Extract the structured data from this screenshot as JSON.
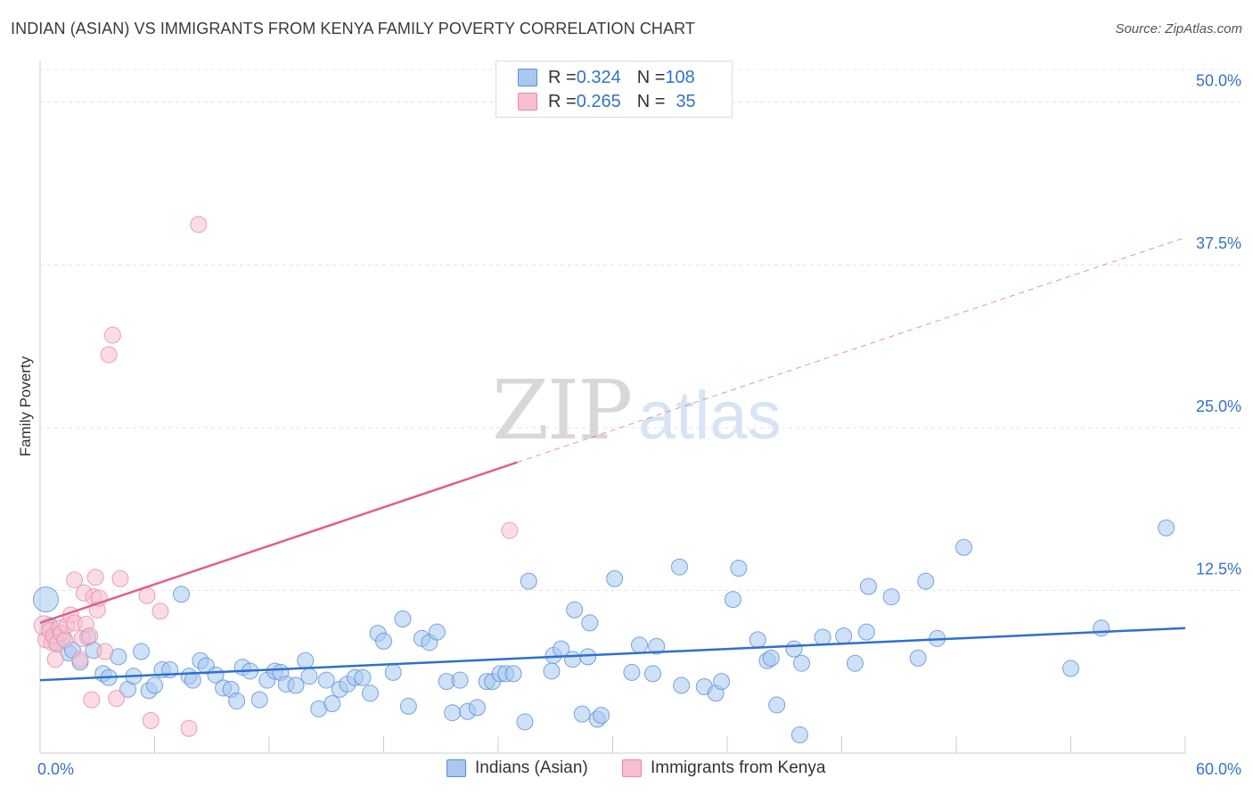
{
  "title": "INDIAN (ASIAN) VS IMMIGRANTS FROM KENYA FAMILY POVERTY CORRELATION CHART",
  "source": "Source: ZipAtlas.com",
  "watermark": {
    "zip": "ZIP",
    "atlas": "atlas"
  },
  "colors": {
    "blue_fill": "#a8c8f0",
    "blue_stroke": "#5b8fd6",
    "blue_line": "#2f6fd0",
    "pink_fill": "#f7bfd0",
    "pink_stroke": "#e68aa8",
    "pink_line": "#e0608a",
    "axis_text": "#3572c6"
  },
  "legend": {
    "rows": [
      {
        "r_label": "R = ",
        "r_value": "0.324",
        "n_label": "N = ",
        "n_value": "108",
        "color": "#a8c8f0"
      },
      {
        "r_label": "R = ",
        "r_value": "0.265",
        "n_label": "N = ",
        "n_value": "35",
        "color": "#f7bfd0"
      }
    ]
  },
  "chart_data": {
    "type": "scatter",
    "title": "INDIAN (ASIAN) VS IMMIGRANTS FROM KENYA FAMILY POVERTY CORRELATION CHART",
    "xlabel": "",
    "ylabel": "Family Poverty",
    "xlim": [
      0,
      60
    ],
    "ylim": [
      0,
      52.5
    ],
    "x_tick_labels": [
      "0.0%",
      "60.0%"
    ],
    "y_ticks": [
      12.5,
      25.0,
      37.5,
      50.0
    ],
    "y_tick_labels": [
      "12.5%",
      "25.0%",
      "37.5%",
      "50.0%"
    ],
    "grid": true,
    "series": [
      {
        "name": "Indians (Asian)",
        "color": "#a8c8f0",
        "trend": {
          "x0": 0,
          "y0": 5.6,
          "x1": 60,
          "y1": 9.6,
          "solid_to": 60
        },
        "points": [
          [
            0.3,
            11.8,
            14
          ],
          [
            0.5,
            9.8,
            9
          ],
          [
            0.8,
            8.5,
            9
          ],
          [
            1.2,
            8.9,
            9
          ],
          [
            1.5,
            7.7,
            9
          ],
          [
            1.7,
            7.9,
            9
          ],
          [
            2.1,
            7.0,
            9
          ],
          [
            2.5,
            8.9,
            9
          ],
          [
            2.8,
            7.9,
            9
          ],
          [
            3.3,
            6.1,
            9
          ],
          [
            3.6,
            5.8,
            9
          ],
          [
            4.1,
            7.4,
            9
          ],
          [
            4.6,
            4.9,
            9
          ],
          [
            4.9,
            5.9,
            9
          ],
          [
            5.3,
            7.8,
            9
          ],
          [
            5.7,
            4.8,
            9
          ],
          [
            6.0,
            5.2,
            9
          ],
          [
            6.4,
            6.4,
            9
          ],
          [
            6.8,
            6.4,
            9
          ],
          [
            7.4,
            12.2,
            9
          ],
          [
            7.8,
            5.9,
            9
          ],
          [
            8.0,
            5.6,
            9
          ],
          [
            8.4,
            7.1,
            9
          ],
          [
            8.7,
            6.7,
            9
          ],
          [
            9.2,
            6.0,
            9
          ],
          [
            9.6,
            5.0,
            9
          ],
          [
            10.0,
            4.9,
            9
          ],
          [
            10.3,
            4.0,
            9
          ],
          [
            10.6,
            6.6,
            9
          ],
          [
            11.0,
            6.3,
            9
          ],
          [
            11.5,
            4.1,
            9
          ],
          [
            11.9,
            5.6,
            9
          ],
          [
            12.3,
            6.3,
            9
          ],
          [
            12.6,
            6.2,
            9
          ],
          [
            12.9,
            5.3,
            9
          ],
          [
            13.4,
            5.2,
            9
          ],
          [
            13.9,
            7.1,
            9
          ],
          [
            14.1,
            5.9,
            9
          ],
          [
            14.6,
            3.4,
            9
          ],
          [
            15.0,
            5.6,
            9
          ],
          [
            15.3,
            3.8,
            9
          ],
          [
            15.7,
            4.9,
            9
          ],
          [
            16.1,
            5.3,
            9
          ],
          [
            16.5,
            5.8,
            9
          ],
          [
            16.9,
            5.8,
            9
          ],
          [
            17.3,
            4.6,
            9
          ],
          [
            17.7,
            9.2,
            9
          ],
          [
            18.0,
            8.6,
            9
          ],
          [
            18.5,
            6.2,
            9
          ],
          [
            19.0,
            10.3,
            9
          ],
          [
            19.3,
            3.6,
            9
          ],
          [
            20.0,
            8.8,
            9
          ],
          [
            20.4,
            8.5,
            9
          ],
          [
            20.8,
            9.3,
            9
          ],
          [
            21.3,
            5.5,
            9
          ],
          [
            21.6,
            3.1,
            9
          ],
          [
            22.0,
            5.6,
            9
          ],
          [
            22.4,
            3.2,
            9
          ],
          [
            22.9,
            3.5,
            9
          ],
          [
            23.4,
            5.5,
            9
          ],
          [
            23.7,
            5.5,
            9
          ],
          [
            24.1,
            6.1,
            9
          ],
          [
            24.4,
            6.1,
            9
          ],
          [
            24.8,
            6.1,
            9
          ],
          [
            25.4,
            2.4,
            9
          ],
          [
            25.6,
            13.2,
            9
          ],
          [
            26.8,
            6.3,
            9
          ],
          [
            26.9,
            7.5,
            9
          ],
          [
            27.3,
            8.0,
            9
          ],
          [
            27.9,
            7.2,
            9
          ],
          [
            28.0,
            11.0,
            9
          ],
          [
            28.4,
            3.0,
            9
          ],
          [
            28.7,
            7.4,
            9
          ],
          [
            28.8,
            10.0,
            9
          ],
          [
            29.2,
            2.6,
            9
          ],
          [
            29.4,
            2.9,
            9
          ],
          [
            30.1,
            13.4,
            9
          ],
          [
            31.0,
            6.2,
            9
          ],
          [
            31.4,
            8.3,
            9
          ],
          [
            32.1,
            6.1,
            9
          ],
          [
            32.3,
            8.2,
            9
          ],
          [
            33.5,
            14.3,
            9
          ],
          [
            33.6,
            5.2,
            9
          ],
          [
            34.8,
            5.1,
            9
          ],
          [
            35.4,
            4.6,
            9
          ],
          [
            35.7,
            5.5,
            9
          ],
          [
            36.3,
            11.8,
            9
          ],
          [
            36.6,
            14.2,
            9
          ],
          [
            37.6,
            8.7,
            9
          ],
          [
            38.1,
            7.1,
            9
          ],
          [
            38.3,
            7.3,
            9
          ],
          [
            38.6,
            3.7,
            9
          ],
          [
            39.5,
            8.0,
            9
          ],
          [
            39.8,
            1.4,
            9
          ],
          [
            39.9,
            6.9,
            9
          ],
          [
            41.0,
            8.9,
            9
          ],
          [
            42.1,
            9.0,
            9
          ],
          [
            42.7,
            6.9,
            9
          ],
          [
            43.3,
            9.3,
            9
          ],
          [
            43.4,
            12.8,
            9
          ],
          [
            44.6,
            12.0,
            9
          ],
          [
            46.0,
            7.3,
            9
          ],
          [
            46.4,
            13.2,
            9
          ],
          [
            47.0,
            8.8,
            9
          ],
          [
            48.4,
            15.8,
            9
          ],
          [
            54.0,
            6.5,
            9
          ],
          [
            55.6,
            9.6,
            9
          ],
          [
            59.0,
            17.3,
            9
          ]
        ]
      },
      {
        "name": "Immigrants from Kenya",
        "color": "#f7bfd0",
        "trend": {
          "x0": 0,
          "y0": 10.0,
          "x1": 60,
          "y1": 39.6,
          "solid_to": 25
        },
        "points": [
          [
            0.2,
            9.8,
            11
          ],
          [
            0.3,
            8.7,
            9
          ],
          [
            0.5,
            9.4,
            9
          ],
          [
            0.6,
            8.5,
            9
          ],
          [
            0.7,
            9.0,
            9
          ],
          [
            0.8,
            7.2,
            9
          ],
          [
            0.9,
            8.4,
            9
          ],
          [
            1.0,
            9.6,
            9
          ],
          [
            1.1,
            9.2,
            9
          ],
          [
            1.3,
            8.7,
            9
          ],
          [
            1.4,
            9.8,
            9
          ],
          [
            1.6,
            10.6,
            9
          ],
          [
            1.8,
            10.0,
            9
          ],
          [
            1.8,
            13.3,
            9
          ],
          [
            2.1,
            7.2,
            9
          ],
          [
            2.2,
            8.8,
            9
          ],
          [
            2.3,
            12.3,
            9
          ],
          [
            2.4,
            9.9,
            9
          ],
          [
            2.6,
            9.0,
            9
          ],
          [
            2.7,
            4.1,
            9
          ],
          [
            2.8,
            12.0,
            9
          ],
          [
            2.9,
            13.5,
            9
          ],
          [
            3.0,
            11.0,
            9
          ],
          [
            3.1,
            11.9,
            9
          ],
          [
            3.4,
            7.8,
            9
          ],
          [
            3.6,
            30.6,
            9
          ],
          [
            3.8,
            32.1,
            9
          ],
          [
            4.0,
            4.2,
            9
          ],
          [
            4.2,
            13.4,
            9
          ],
          [
            5.6,
            12.1,
            9
          ],
          [
            5.8,
            2.5,
            9
          ],
          [
            6.3,
            10.9,
            9
          ],
          [
            7.8,
            1.9,
            9
          ],
          [
            8.3,
            40.6,
            9
          ],
          [
            24.6,
            17.1,
            9
          ]
        ]
      }
    ]
  },
  "bottom_legend": [
    {
      "label": "Indians (Asian)",
      "color": "#a8c8f0"
    },
    {
      "label": "Immigrants from Kenya",
      "color": "#f7bfd0"
    }
  ]
}
